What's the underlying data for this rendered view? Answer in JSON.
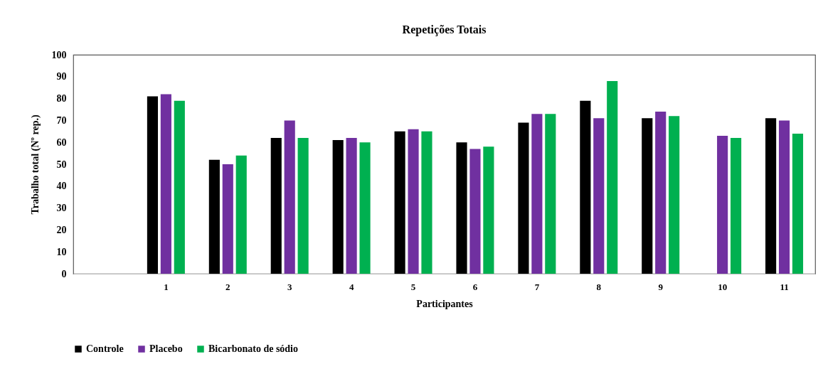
{
  "chart_data": {
    "type": "bar",
    "title": "Repetições Totais",
    "xlabel": "Participantes",
    "ylabel": "Trabalho total (Nº rep.)",
    "categories": [
      null,
      "1",
      "2",
      "3",
      "4",
      "5",
      "6",
      "7",
      "8",
      "9",
      "10",
      "11"
    ],
    "series": [
      {
        "name": "Controle",
        "color": "#000000",
        "values": [
          null,
          81,
          52,
          62,
          61,
          65,
          60,
          69,
          79,
          71,
          null,
          71
        ]
      },
      {
        "name": "Placebo",
        "color": "#7030a0",
        "values": [
          null,
          82,
          50,
          70,
          62,
          66,
          57,
          73,
          71,
          74,
          63,
          70
        ]
      },
      {
        "name": "Bicarbonato de sódio",
        "color": "#00b050",
        "values": [
          null,
          79,
          54,
          62,
          60,
          65,
          58,
          73,
          88,
          72,
          62,
          64
        ]
      }
    ],
    "ylim": [
      0,
      100
    ],
    "yticks": [
      0,
      10,
      20,
      30,
      40,
      50,
      60,
      70,
      80,
      90,
      100
    ],
    "grid": false,
    "legend": "bottom"
  }
}
